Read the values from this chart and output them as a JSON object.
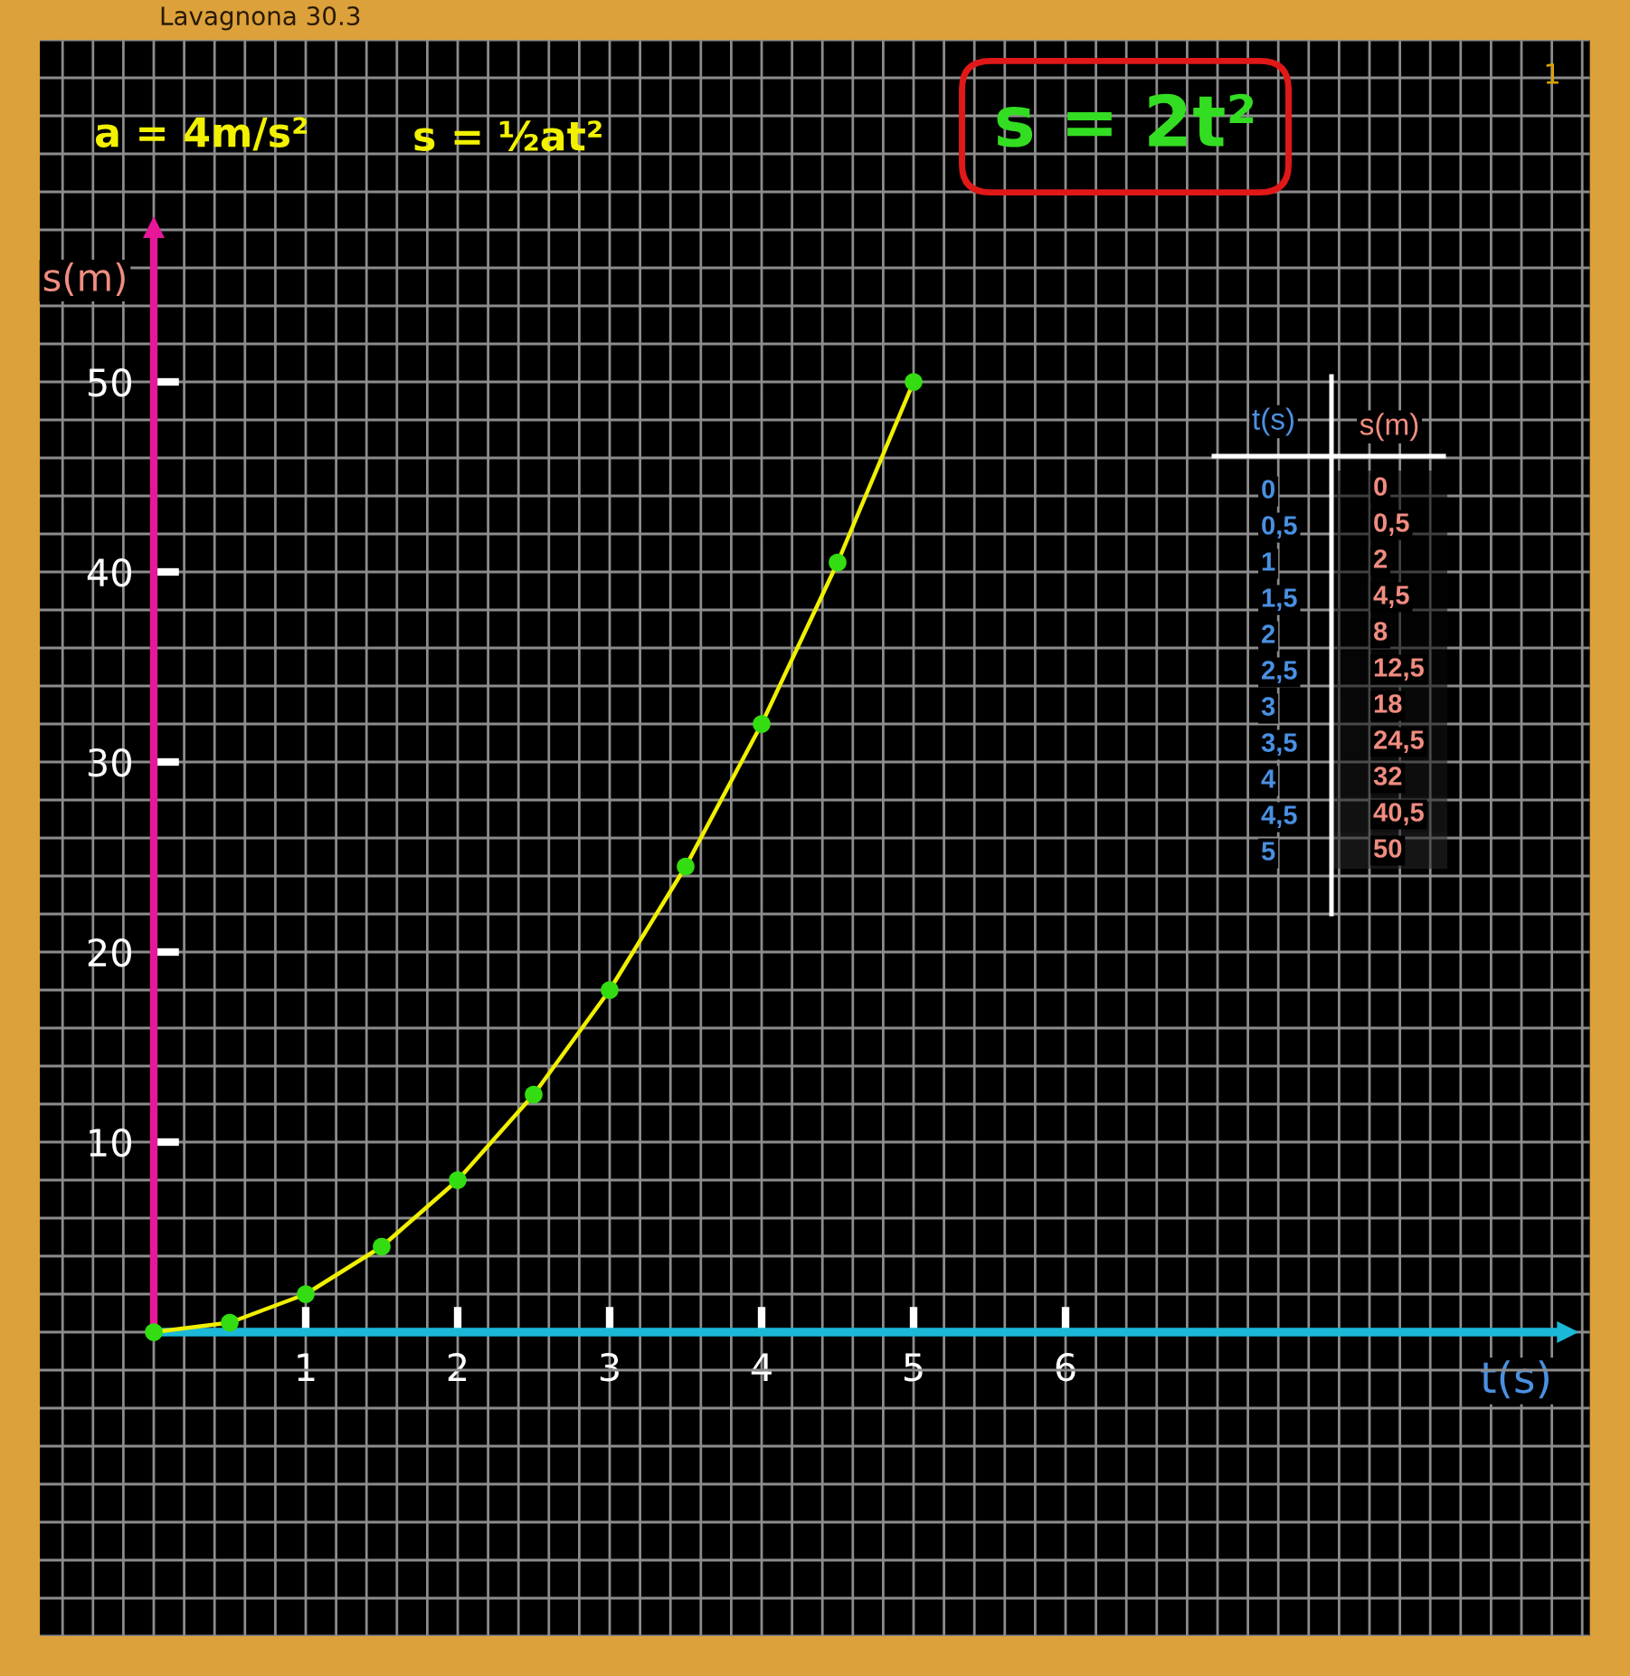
{
  "chart_data": [
    {
      "type": "line",
      "title": "Lavagnona 30.3",
      "xlabel": "t(s)",
      "ylabel": "s(m)",
      "annotations": [
        "a = 4m/s²",
        "s = ½at²",
        "s = 2t²",
        "1"
      ],
      "x": [
        0,
        0.5,
        1,
        1.5,
        2,
        2.5,
        3,
        3.5,
        4,
        4.5,
        5
      ],
      "series": [
        {
          "color": "#f0f000",
          "marker": "none",
          "line_style": "solid",
          "values": [
            0,
            0.5,
            2,
            4.5,
            8,
            12.5,
            18,
            24.5,
            32,
            40.5,
            50
          ]
        },
        {
          "type": "scatter",
          "color": "#33dd11",
          "marker": "circle",
          "values": [
            0,
            0.5,
            2,
            4.5,
            8,
            12.5,
            18,
            24.5,
            32,
            40.5,
            50
          ]
        }
      ],
      "xlim": [
        -0.75,
        9.45
      ],
      "ylim": [
        -16,
        68
      ],
      "xticks": [
        1,
        2,
        3,
        4,
        5,
        6
      ],
      "yticks": [
        10,
        20,
        30,
        40,
        50
      ],
      "grid": true
    },
    {
      "type": "heatmap",
      "ylabel": "t(s)",
      "categories": [
        "s(m)"
      ],
      "cells": [
        [
          0
        ],
        [
          0.5
        ],
        [
          2
        ],
        [
          4.5
        ],
        [
          8
        ],
        [
          12.5
        ],
        [
          18
        ],
        [
          24.5
        ],
        [
          32
        ],
        [
          40.5
        ],
        [
          50
        ]
      ],
      "cell_labels": [
        [
          "0"
        ],
        [
          "0,5"
        ],
        [
          "2"
        ],
        [
          "4,5"
        ],
        [
          "8"
        ],
        [
          "12,5"
        ],
        [
          "18"
        ],
        [
          "24,5"
        ],
        [
          "32"
        ],
        [
          "40,5"
        ],
        [
          "50"
        ]
      ],
      "y_categories": [
        "0",
        "0,5",
        "1",
        "1,5",
        "2",
        "2,5",
        "3",
        "3,5",
        "4",
        "4,5",
        "5"
      ]
    }
  ]
}
